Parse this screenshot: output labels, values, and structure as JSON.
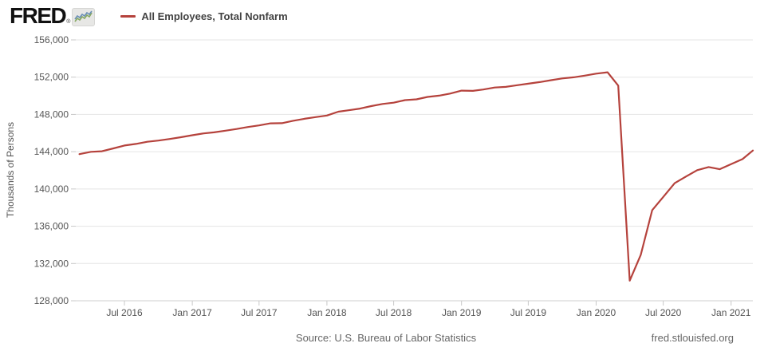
{
  "header": {
    "logo_text": "FRED",
    "logo_registered": "®",
    "legend_label": "All Employees, Total Nonfarm"
  },
  "footer": {
    "source": "Source: U.S. Bureau of Labor Statistics",
    "site": "fred.stlouisfed.org"
  },
  "colors": {
    "line": "#b5423c",
    "grid": "#e5e5e5",
    "axis_line": "#cfcfcf",
    "tick": "#c8c8c8",
    "axis_text": "#555555",
    "footer_text": "#666666",
    "spark_blue": "#6a8fb5",
    "spark_green": "#86a861"
  },
  "chart_data": {
    "type": "line",
    "title": "All Employees, Total Nonfarm",
    "ylabel": "Thousands of Persons",
    "units": "Thousands of Persons",
    "frequency": "Monthly",
    "legend_position": "top-left",
    "grid": "horizontal-only",
    "ylim": [
      128000,
      156000
    ],
    "x_range": [
      "2016-02-20",
      "2021-03-01"
    ],
    "y_ticks": [
      {
        "value": 156000,
        "label": "156,000"
      },
      {
        "value": 152000,
        "label": "152,000"
      },
      {
        "value": 148000,
        "label": "148,000"
      },
      {
        "value": 144000,
        "label": "144,000"
      },
      {
        "value": 140000,
        "label": "140,000"
      },
      {
        "value": 136000,
        "label": "136,000"
      },
      {
        "value": 132000,
        "label": "132,000"
      },
      {
        "value": 128000,
        "label": "128,000"
      }
    ],
    "x_ticks": [
      {
        "date": "2016-07",
        "label": "Jul 2016"
      },
      {
        "date": "2017-01",
        "label": "Jan 2017"
      },
      {
        "date": "2017-07",
        "label": "Jul 2017"
      },
      {
        "date": "2018-01",
        "label": "Jan 2018"
      },
      {
        "date": "2018-07",
        "label": "Jul 2018"
      },
      {
        "date": "2019-01",
        "label": "Jan 2019"
      },
      {
        "date": "2019-07",
        "label": "Jul 2019"
      },
      {
        "date": "2020-01",
        "label": "Jan 2020"
      },
      {
        "date": "2020-07",
        "label": "Jul 2020"
      },
      {
        "date": "2021-01",
        "label": "Jan 2021"
      }
    ],
    "x": [
      "2016-03",
      "2016-04",
      "2016-05",
      "2016-06",
      "2016-07",
      "2016-08",
      "2016-09",
      "2016-10",
      "2016-11",
      "2016-12",
      "2017-01",
      "2017-02",
      "2017-03",
      "2017-04",
      "2017-05",
      "2017-06",
      "2017-07",
      "2017-08",
      "2017-09",
      "2017-10",
      "2017-11",
      "2017-12",
      "2018-01",
      "2018-02",
      "2018-03",
      "2018-04",
      "2018-05",
      "2018-06",
      "2018-07",
      "2018-08",
      "2018-09",
      "2018-10",
      "2018-11",
      "2018-12",
      "2019-01",
      "2019-02",
      "2019-03",
      "2019-04",
      "2019-05",
      "2019-06",
      "2019-07",
      "2019-08",
      "2019-09",
      "2019-10",
      "2019-11",
      "2019-12",
      "2020-01",
      "2020-02",
      "2020-03",
      "2020-04",
      "2020-05",
      "2020-06",
      "2020-07",
      "2020-08",
      "2020-09",
      "2020-10",
      "2020-11",
      "2020-12",
      "2021-01",
      "2021-02",
      "2021-03"
    ],
    "values": [
      143735,
      143990,
      144049,
      144354,
      144662,
      144837,
      145069,
      145198,
      145362,
      145556,
      145765,
      145965,
      146079,
      146254,
      146434,
      146648,
      146825,
      147042,
      147062,
      147319,
      147533,
      147709,
      147884,
      148291,
      148448,
      148624,
      148890,
      149128,
      149260,
      149532,
      149624,
      149879,
      150011,
      150238,
      150550,
      150529,
      150676,
      150892,
      150954,
      151136,
      151295,
      151471,
      151679,
      151864,
      151980,
      152160,
      152380,
      152520,
      151090,
      130161,
      132912,
      137730,
      139141,
      140620,
      141337,
      142017,
      142351,
      142124,
      142669,
      143204,
      144120
    ]
  }
}
